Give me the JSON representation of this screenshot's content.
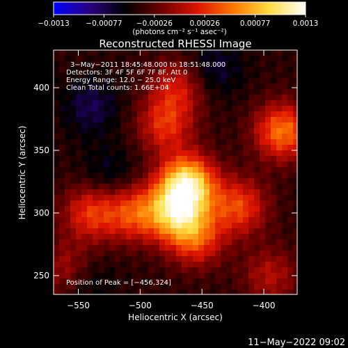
{
  "chart_data": {
    "type": "heatmap",
    "title": "Reconstructed RHESSI Image",
    "xlabel": "Heliocentric X (arcsec)",
    "ylabel": "Heliocentric Y (arcsec)",
    "xlim": [
      -570,
      -373
    ],
    "ylim": [
      235,
      430
    ],
    "x_ticks": [
      -550,
      -500,
      -450,
      -400
    ],
    "y_ticks": [
      250,
      300,
      350,
      400
    ],
    "x_tick_labels": [
      "−550",
      "−500",
      "−450",
      "−400"
    ],
    "y_tick_labels": [
      "250",
      "300",
      "350",
      "400"
    ],
    "colorbar": {
      "range": [
        -0.0013,
        0.0013
      ],
      "tick_labels": [
        "−0.0013",
        "−0.00077",
        "−0.00026",
        "0.00026",
        "0.00077",
        "0.0013"
      ],
      "units_label": "(photons cm⁻² s⁻¹ asec⁻²)",
      "stops": [
        "#0000ff",
        "#2a0080",
        "#000000",
        "#6e0000",
        "#dd1400",
        "#ff7800",
        "#ffdd44",
        "#ffffff"
      ]
    },
    "annotations": [
      "3−May−2011 18:45:48.000 to 18:51:48.000",
      "Detectors: 3F 4F 5F 6F 7F 8F, Att 0",
      "Energy Range: 12.0 − 25.0 keV",
      "Clean     Total counts: 1.66E+04"
    ],
    "peak_label": "Position of Peak = [−456,324]",
    "peak": [
      -456,
      324
    ],
    "sources": [
      {
        "x": -462,
        "y": 323,
        "value": 0.0013
      },
      {
        "x": -472,
        "y": 300,
        "value": 0.0009
      },
      {
        "x": -505,
        "y": 300,
        "value": 0.0006
      },
      {
        "x": -455,
        "y": 280,
        "value": 0.0006
      },
      {
        "x": -420,
        "y": 305,
        "value": 0.0006
      },
      {
        "x": -385,
        "y": 365,
        "value": 0.0008
      },
      {
        "x": -480,
        "y": 370,
        "value": 0.0005
      },
      {
        "x": -470,
        "y": 400,
        "value": 0.0004
      },
      {
        "x": -540,
        "y": 300,
        "value": 0.00055
      },
      {
        "x": -560,
        "y": 255,
        "value": 0.0003
      },
      {
        "x": -395,
        "y": 250,
        "value": 0.0003
      },
      {
        "x": -525,
        "y": 330,
        "value": -0.0004
      },
      {
        "x": -540,
        "y": 385,
        "value": -0.0005
      },
      {
        "x": -440,
        "y": 415,
        "value": -0.00045
      },
      {
        "x": -545,
        "y": 245,
        "value": -0.0004
      }
    ]
  },
  "footer": {
    "timestamp": "11−May−2022 09:02"
  }
}
